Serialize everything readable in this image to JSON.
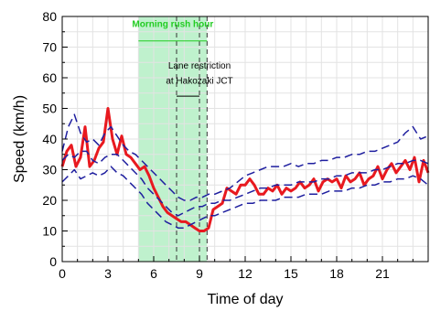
{
  "chart_data": {
    "type": "line",
    "xlabel": "Time of day",
    "ylabel": "Speed (km/h)",
    "xlim": [
      0,
      24
    ],
    "ylim": [
      0,
      80
    ],
    "xticks": [
      0,
      3,
      6,
      9,
      12,
      15,
      18,
      21
    ],
    "yticks": [
      0,
      10,
      20,
      30,
      40,
      50,
      60,
      70,
      80
    ],
    "grid": true,
    "series": [
      {
        "style": "solid",
        "color": "#e8191f",
        "x": [
          0,
          0.3,
          0.6,
          0.9,
          1.2,
          1.5,
          1.8,
          2.1,
          2.4,
          2.7,
          3.0,
          3.3,
          3.6,
          3.9,
          4.2,
          4.5,
          4.8,
          5.1,
          5.4,
          5.7,
          6.0,
          6.3,
          6.6,
          6.9,
          7.2,
          7.5,
          7.8,
          8.1,
          8.4,
          8.7,
          9.0,
          9.3,
          9.6,
          9.9,
          10.2,
          10.5,
          10.8,
          11.1,
          11.4,
          11.7,
          12.0,
          12.3,
          12.6,
          12.9,
          13.2,
          13.5,
          13.8,
          14.1,
          14.4,
          14.7,
          15.0,
          15.3,
          15.6,
          15.9,
          16.2,
          16.5,
          16.8,
          17.1,
          17.4,
          17.7,
          18.0,
          18.3,
          18.6,
          18.9,
          19.2,
          19.5,
          19.8,
          20.1,
          20.4,
          20.7,
          21.0,
          21.3,
          21.6,
          21.9,
          22.2,
          22.5,
          22.8,
          23.1,
          23.4,
          23.7,
          24.0
        ],
        "y": [
          31,
          36,
          38,
          31,
          34,
          44,
          31,
          33,
          37,
          39,
          50,
          40,
          35,
          41,
          35,
          34,
          32,
          30,
          31,
          28,
          24,
          21,
          18,
          16,
          15,
          14,
          13,
          13,
          12,
          11,
          10,
          10,
          11,
          17,
          18,
          19,
          24,
          23,
          22,
          25,
          25,
          27,
          25,
          22,
          22,
          24,
          23,
          25,
          22,
          24,
          23,
          24,
          26,
          24,
          25,
          27,
          23,
          26,
          27,
          26,
          27,
          24,
          28,
          26,
          27,
          29,
          25,
          27,
          28,
          31,
          27,
          30,
          32,
          29,
          31,
          33,
          30,
          34,
          26,
          33,
          29
        ]
      },
      {
        "style": "dashed",
        "color": "#1f1f9f",
        "x": [
          0,
          0.4,
          0.8,
          1.2,
          1.6,
          2.0,
          2.4,
          2.8,
          3.2,
          3.6,
          4.0,
          4.4,
          4.8,
          5.2,
          5.6,
          6.0,
          6.4,
          6.8,
          7.2,
          7.6,
          8.0,
          8.4,
          8.8,
          9.2,
          9.6,
          10.0,
          10.5,
          11.0,
          11.5,
          12.0,
          12.5,
          13.0,
          13.5,
          14.0,
          14.5,
          15.0,
          15.5,
          16.0,
          16.5,
          17.0,
          17.5,
          18.0,
          18.5,
          19.0,
          19.5,
          20.0,
          20.5,
          21.0,
          21.5,
          22.0,
          22.5,
          23.0,
          23.5,
          24.0
        ],
        "y": [
          36,
          44,
          48,
          42,
          39,
          40,
          38,
          42,
          44,
          41,
          38,
          36,
          35,
          33,
          31,
          29,
          27,
          25,
          23,
          21,
          20,
          20,
          21,
          21,
          22,
          22,
          23,
          24,
          26,
          28,
          29,
          30,
          31,
          31,
          31,
          32,
          31,
          32,
          32,
          33,
          33,
          34,
          34,
          35,
          35,
          36,
          36,
          37,
          38,
          39,
          42,
          44,
          40,
          41
        ]
      },
      {
        "style": "dashed",
        "color": "#1f1f9f",
        "x": [
          0,
          0.4,
          0.8,
          1.2,
          1.6,
          2.0,
          2.4,
          2.8,
          3.2,
          3.6,
          4.0,
          4.4,
          4.8,
          5.2,
          5.6,
          6.0,
          6.4,
          6.8,
          7.2,
          7.6,
          8.0,
          8.4,
          8.8,
          9.2,
          9.6,
          10.0,
          10.5,
          11.0,
          11.5,
          12.0,
          12.5,
          13.0,
          13.5,
          14.0,
          14.5,
          15.0,
          15.5,
          16.0,
          16.5,
          17.0,
          17.5,
          18.0,
          18.5,
          19.0,
          19.5,
          20.0,
          20.5,
          21.0,
          21.5,
          22.0,
          22.5,
          23.0,
          23.5,
          24.0
        ],
        "y": [
          33,
          35,
          34,
          36,
          36,
          33,
          32,
          34,
          35,
          35,
          33,
          31,
          29,
          27,
          24,
          22,
          20,
          18,
          16,
          15,
          16,
          17,
          18,
          18,
          19,
          19,
          20,
          20,
          21,
          22,
          23,
          24,
          24,
          25,
          25,
          25,
          26,
          26,
          26,
          27,
          27,
          28,
          28,
          29,
          29,
          29,
          30,
          30,
          31,
          32,
          32,
          33,
          33,
          32
        ]
      },
      {
        "style": "dashed",
        "color": "#1f1f9f",
        "x": [
          0,
          0.4,
          0.8,
          1.2,
          1.6,
          2.0,
          2.4,
          2.8,
          3.2,
          3.6,
          4.0,
          4.4,
          4.8,
          5.2,
          5.6,
          6.0,
          6.4,
          6.8,
          7.2,
          7.6,
          8.0,
          8.4,
          8.8,
          9.2,
          9.6,
          10.0,
          10.5,
          11.0,
          11.5,
          12.0,
          12.5,
          13.0,
          13.5,
          14.0,
          14.5,
          15.0,
          15.5,
          16.0,
          16.5,
          17.0,
          17.5,
          18.0,
          18.5,
          19.0,
          19.5,
          20.0,
          20.5,
          21.0,
          21.5,
          22.0,
          22.5,
          23.0,
          23.5,
          24.0
        ],
        "y": [
          26,
          28,
          30,
          27,
          28,
          29,
          28,
          29,
          31,
          29,
          28,
          26,
          24,
          22,
          19,
          17,
          15,
          13,
          12,
          11,
          11,
          12,
          13,
          14,
          15,
          15,
          16,
          17,
          18,
          19,
          19,
          20,
          20,
          20,
          21,
          21,
          21,
          22,
          22,
          22,
          23,
          23,
          23,
          24,
          24,
          25,
          25,
          26,
          26,
          27,
          27,
          28,
          27,
          25
        ]
      }
    ],
    "shaded_regions": [
      {
        "x0": 5,
        "x1": 9.5,
        "label": "Morning rush hour",
        "color": "#b8f0c8"
      }
    ],
    "vlines": [
      7.5,
      9.0,
      9.5
    ],
    "annotations": [
      {
        "text": "Lane restriction",
        "x": 9.0,
        "y": 63
      },
      {
        "text": "at Hakozaki JCT",
        "x": 9.0,
        "y": 58
      }
    ]
  }
}
